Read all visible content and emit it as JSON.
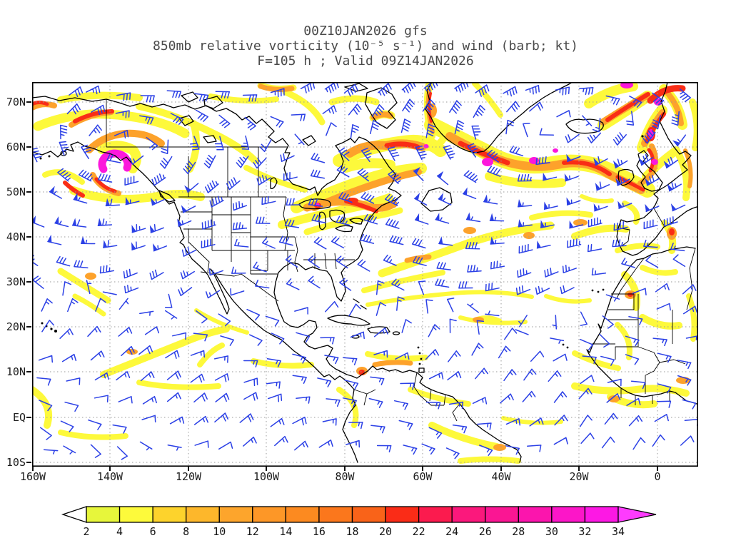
{
  "title": {
    "line1": "00Z10JAN2026 gfs",
    "line2": "850mb relative vorticity (10⁻⁵ s⁻¹) and wind (barb; kt)",
    "line3": "F=105 h ; Valid 09Z14JAN2026"
  },
  "axes": {
    "lat_labels": [
      "70N",
      "60N",
      "50N",
      "40N",
      "30N",
      "20N",
      "10N",
      "EQ",
      "10S"
    ],
    "lon_labels": [
      "160W",
      "140W",
      "120W",
      "100W",
      "80W",
      "60W",
      "40W",
      "20W",
      "0"
    ]
  },
  "colorbar": {
    "tick_labels": [
      "2",
      "4",
      "6",
      "8",
      "10",
      "12",
      "14",
      "16",
      "18",
      "20",
      "22",
      "24",
      "26",
      "28",
      "30",
      "32",
      "34"
    ],
    "segment_colors": [
      "#e7f63b",
      "#fdfa3b",
      "#fdd32c",
      "#fdb72b",
      "#fda52c",
      "#fd9727",
      "#fc8a20",
      "#fb771c",
      "#f96319",
      "#fa2c17",
      "#fb1b4e",
      "#fb187c",
      "#fa1693",
      "#fb15ad",
      "#fc16c8",
      "#fd18e4"
    ],
    "under_arrow_color": "#ffffff",
    "over_arrow_color": "#fe3bfe"
  },
  "palette": {
    "vort_yellow": "#fdf93b",
    "vort_orange": "#fda22b",
    "vort_red": "#f92d16",
    "vort_magenta": "#fc17dc",
    "barb_blue": "#2b40e6",
    "coast_black": "#000000",
    "grid_gray": "#9a9a9a",
    "title_gray": "#4a4a4a"
  },
  "chart_data": {
    "type": "heatmap",
    "title": "00Z10JAN2026 gfs",
    "subtitle": "850mb relative vorticity (10⁻⁵ s⁻¹) and wind (barb; kt)",
    "forecast_line": "F=105 h ; Valid 09Z14JAN2026",
    "model": "gfs",
    "init_time": "00Z10JAN2026",
    "valid_time": "09Z14JAN2026",
    "forecast_hour": 105,
    "level": "850mb",
    "field": "relative vorticity",
    "field_units": "10⁻⁵ s⁻¹",
    "wind_depiction": "barb",
    "wind_units": "kt",
    "x_axis": {
      "ticks": [
        "160W",
        "140W",
        "120W",
        "100W",
        "80W",
        "60W",
        "40W",
        "20W",
        "0"
      ],
      "range_deg_lon": [
        -160.8,
        10.4
      ],
      "gridlines": "dotted, every 20 deg"
    },
    "y_axis": {
      "ticks": [
        "70N",
        "60N",
        "50N",
        "40N",
        "30N",
        "20N",
        "10N",
        "EQ",
        "10S"
      ],
      "range_deg_lat": [
        -11.1,
        74.5
      ],
      "gridlines": "dotted, every 10 deg"
    },
    "color_scale": {
      "levels": [
        2,
        4,
        6,
        8,
        10,
        12,
        14,
        16,
        18,
        20,
        22,
        24,
        26,
        28,
        30,
        32,
        34
      ],
      "colors": [
        "#e7f63b",
        "#fdfa3b",
        "#fdd32c",
        "#fdb72b",
        "#fda52c",
        "#fd9727",
        "#fc8a20",
        "#fb771c",
        "#f96319",
        "#fa2c17",
        "#fb1b4e",
        "#fb187c",
        "#fa1693",
        "#fb15ad",
        "#fc16c8",
        "#fd18e4"
      ],
      "over_color": "#fe3bfe",
      "under": "white below 2"
    },
    "notable_features": [
      {
        "feature": "closed magenta vorticity max > 34",
        "location": "Gulf of Alaska near 55N 139W"
      },
      {
        "feature": "cyclone band with cores 24-34",
        "location": "south of Greenland to Ireland, 55-60N 45-10W"
      },
      {
        "feature": "vorticity maxima > 28 with magenta cores",
        "location": "Norwegian Sea / Scandinavia 60-75N"
      },
      {
        "feature": "orange-red streak 10-22",
        "location": "Great Lakes through St. Lawrence valley 45-50N"
      },
      {
        "feature": "orange-red max 10-24 with small magenta core",
        "location": "NE Hudson Bay / Ungava near 60N 75W"
      },
      {
        "feature": "thin yellow streaks 2-8",
        "location": "subtropics, ITCZ, tropical Atlantic and Africa"
      }
    ],
    "wind_field_summary": "Blue wind barbs (kt): midlatitude westerlies 20-50 kt, strongest near North Atlantic cyclone; NE trade easterlies 10-15 kt in tropics; cyclonic circulations around Gulf of Alaska, south-of-Greenland and Norwegian Sea lows."
  }
}
